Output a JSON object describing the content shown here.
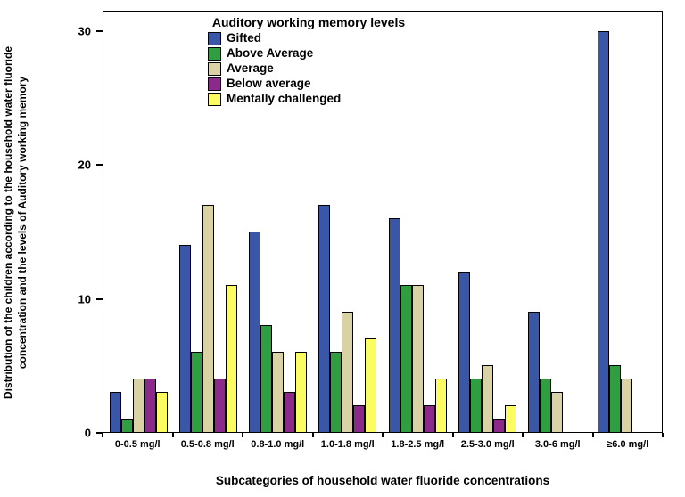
{
  "chart_data": {
    "type": "bar",
    "legend_title": "Auditory working memory levels",
    "xlabel": "Subcategories of household water fluoride concentrations",
    "ylabel": "Distribution of the children according to the household water fluoride concentration and the levels of Auditory working memory",
    "ylim": [
      0,
      30
    ],
    "yticks": [
      0,
      10,
      20,
      30
    ],
    "grid": false,
    "legend_position": "top-center-inside",
    "categories": [
      "0-0.5 mg/l",
      "0.5-0.8 mg/l",
      "0.8-1.0 mg/l",
      "1.0-1.8 mg/l",
      "1.8-2.5 mg/l",
      "2.5-3.0 mg/l",
      "3.0-6 mg/l",
      "≥6.0 mg/l"
    ],
    "series": [
      {
        "name": "Gifted",
        "color": "#3a57a7",
        "values": [
          3,
          14,
          15,
          17,
          16,
          12,
          9,
          30
        ]
      },
      {
        "name": "Above Average",
        "color": "#2f9e41",
        "values": [
          1,
          6,
          8,
          6,
          11,
          4,
          4,
          5
        ]
      },
      {
        "name": "Average",
        "color": "#d8d2a5",
        "values": [
          4,
          17,
          6,
          9,
          11,
          5,
          3,
          4
        ]
      },
      {
        "name": "Below average",
        "color": "#8c2a8c",
        "values": [
          4,
          4,
          3,
          2,
          2,
          1,
          0,
          0
        ]
      },
      {
        "name": "Mentally challenged",
        "color": "#fbfb62",
        "values": [
          3,
          11,
          6,
          7,
          4,
          2,
          0,
          0
        ]
      }
    ]
  }
}
